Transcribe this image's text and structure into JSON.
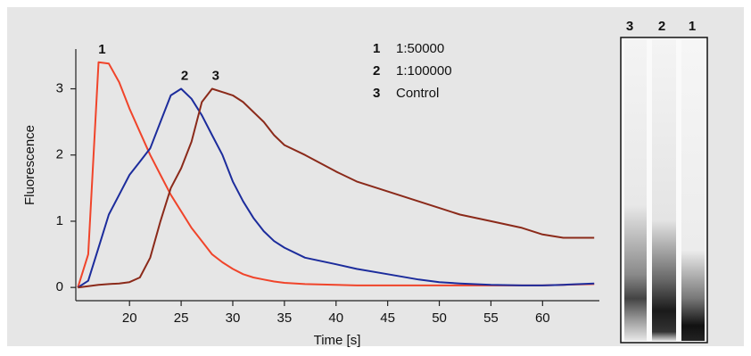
{
  "chart_data": {
    "type": "line",
    "x_label": "Time [s]",
    "y_label": "Fluorescence",
    "x": [
      15,
      16,
      17,
      18,
      19,
      20,
      21,
      22,
      23,
      24,
      25,
      26,
      27,
      28,
      29,
      30,
      31,
      32,
      33,
      34,
      35,
      37,
      40,
      42,
      45,
      48,
      50,
      52,
      55,
      58,
      60,
      62,
      65
    ],
    "series": [
      {
        "label": "1",
        "name": "1:50000",
        "color": "#f0442a",
        "values": [
          0,
          0.5,
          3.4,
          3.38,
          3.1,
          2.7,
          2.35,
          2.0,
          1.7,
          1.4,
          1.15,
          0.9,
          0.7,
          0.5,
          0.38,
          0.28,
          0.2,
          0.15,
          0.12,
          0.09,
          0.07,
          0.05,
          0.04,
          0.03,
          0.03,
          0.03,
          0.03,
          0.03,
          0.03,
          0.03,
          0.03,
          0.04,
          0.05
        ]
      },
      {
        "label": "2",
        "name": "1:100000",
        "color": "#1c2c9c",
        "values": [
          0,
          0.1,
          0.6,
          1.1,
          1.4,
          1.7,
          1.9,
          2.1,
          2.5,
          2.9,
          3.0,
          2.85,
          2.6,
          2.3,
          2.0,
          1.6,
          1.3,
          1.05,
          0.85,
          0.7,
          0.6,
          0.45,
          0.35,
          0.28,
          0.2,
          0.12,
          0.08,
          0.06,
          0.04,
          0.03,
          0.03,
          0.04,
          0.06
        ]
      },
      {
        "label": "3",
        "name": "Control",
        "color": "#8b2a1a",
        "values": [
          0,
          0.02,
          0.04,
          0.05,
          0.06,
          0.08,
          0.15,
          0.45,
          1.0,
          1.5,
          1.8,
          2.2,
          2.8,
          3.0,
          2.95,
          2.9,
          2.8,
          2.65,
          2.5,
          2.3,
          2.15,
          2.0,
          1.75,
          1.6,
          1.45,
          1.3,
          1.2,
          1.1,
          1.0,
          0.9,
          0.8,
          0.75,
          0.75
        ]
      }
    ],
    "xlim": [
      14.8,
      65.5
    ],
    "xticks": [
      20,
      25,
      30,
      35,
      40,
      45,
      50,
      55,
      60
    ],
    "ylim": [
      -0.2,
      3.6
    ],
    "yticks": [
      0,
      1,
      2,
      3
    ],
    "grid": false
  }
}
